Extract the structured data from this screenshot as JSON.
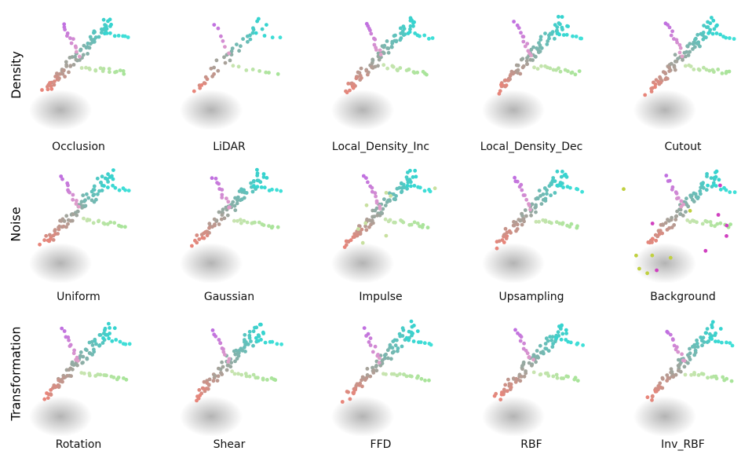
{
  "rows": [
    {
      "label": "Density",
      "cells": [
        {
          "caption": "Occlusion"
        },
        {
          "caption": "LiDAR"
        },
        {
          "caption": "Local_Density_Inc"
        },
        {
          "caption": "Local_Density_Dec"
        },
        {
          "caption": "Cutout"
        }
      ]
    },
    {
      "label": "Noise",
      "cells": [
        {
          "caption": "Uniform"
        },
        {
          "caption": "Gaussian"
        },
        {
          "caption": "Impulse"
        },
        {
          "caption": "Upsampling"
        },
        {
          "caption": "Background"
        }
      ]
    },
    {
      "label": "Transformation",
      "cells": [
        {
          "caption": "Rotation"
        },
        {
          "caption": "Shear"
        },
        {
          "caption": "FFD"
        },
        {
          "caption": "RBF"
        },
        {
          "caption": "Inv_RBF"
        }
      ]
    }
  ],
  "colors": {
    "nose": "#e8857a",
    "tail": "#36d4d0",
    "vertical_fin": "#c070e0",
    "wing": "#a8e49a",
    "shadow": "#9a9a9a"
  }
}
